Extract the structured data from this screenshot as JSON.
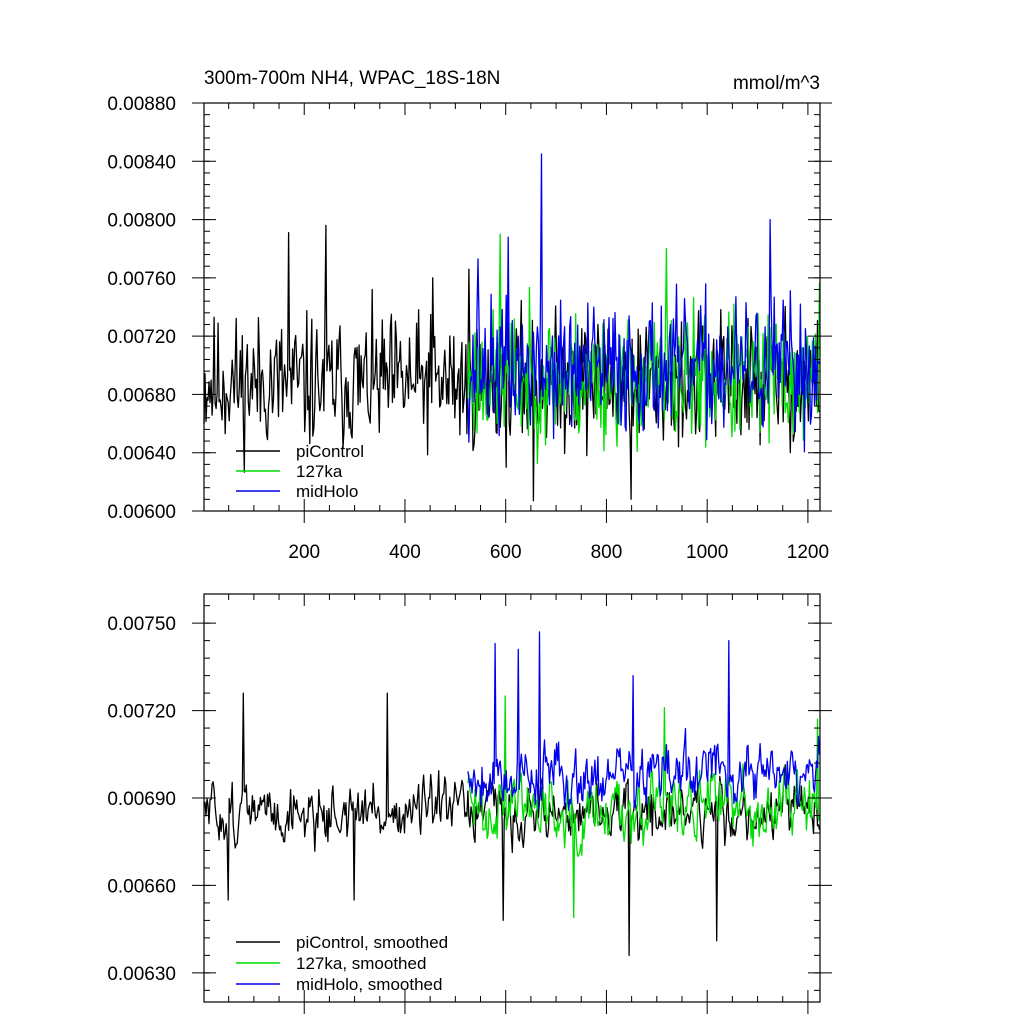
{
  "chart_data": [
    {
      "type": "line",
      "title": "300m-700m NH4, WPAC_18S-18N",
      "units": "mmol/m^3",
      "xlabel": "",
      "ylabel": "",
      "xlim": [
        1,
        1224
      ],
      "ylim": [
        0.006,
        0.0088
      ],
      "x_ticks": [
        200,
        400,
        600,
        800,
        1000,
        1200
      ],
      "x_tick_labels": [
        "200",
        "400",
        "600",
        "800",
        "1000",
        "1200"
      ],
      "y_ticks": [
        0.006,
        0.0064,
        0.0068,
        0.0072,
        0.0076,
        0.008,
        0.0084,
        0.0088
      ],
      "y_tick_labels": [
        "0.00600",
        "0.00640",
        "0.00680",
        "0.00720",
        "0.00760",
        "0.00800",
        "0.00840",
        "0.00880"
      ],
      "legend_position": "bottom-left",
      "series": [
        {
          "name": "piControl",
          "color": "#000000",
          "x_start": 1,
          "x_end": 1224,
          "mean": 0.00688,
          "spread": 0.00028,
          "seed": 11,
          "peaks": [
            [
              527,
              0.00766
            ],
            [
              170,
              0.00791
            ],
            [
              243,
              0.00796
            ],
            [
              455,
              0.0076
            ],
            [
              655,
              0.00607
            ],
            [
              850,
              0.00608
            ]
          ]
        },
        {
          "name": "127ka",
          "color": "#00dd00",
          "x_start": 525,
          "x_end": 1224,
          "mean": 0.00691,
          "spread": 0.00028,
          "seed": 23,
          "peaks": [
            [
              590,
              0.0079
            ],
            [
              920,
              0.0078
            ],
            [
              1224,
              0.00757
            ]
          ]
        },
        {
          "name": "midHolo",
          "color": "#0000ee",
          "x_start": 525,
          "x_end": 1224,
          "mean": 0.00698,
          "spread": 0.00028,
          "seed": 37,
          "peaks": [
            [
              672,
              0.00845
            ],
            [
              1125,
              0.008
            ],
            [
              605,
              0.00788
            ],
            [
              545,
              0.00773
            ]
          ]
        }
      ]
    },
    {
      "type": "line",
      "title": "",
      "xlabel": "",
      "ylabel": "",
      "xlim": [
        1,
        1224
      ],
      "ylim": [
        0.0062,
        0.0076
      ],
      "x_ticks": [
        200,
        400,
        600,
        800,
        1000,
        1200
      ],
      "y_ticks": [
        0.0063,
        0.0066,
        0.0069,
        0.0072,
        0.0075
      ],
      "y_tick_labels": [
        "0.00630",
        "0.00660",
        "0.00690",
        "0.00720",
        "0.00750"
      ],
      "legend_position": "bottom-left",
      "series": [
        {
          "name": "piControl, smoothed",
          "color": "#000000",
          "x_start": 1,
          "x_end": 1224,
          "mean": 0.00685,
          "spread": 0.00012,
          "seed": 51,
          "peaks": [
            [
              80,
              0.00726
            ],
            [
              365,
              0.00726
            ],
            [
              50,
              0.00655
            ],
            [
              300,
              0.00655
            ],
            [
              845,
              0.00636
            ],
            [
              1020,
              0.00641
            ],
            [
              595,
              0.00648
            ]
          ]
        },
        {
          "name": "127ka, smoothed",
          "color": "#00dd00",
          "x_start": 525,
          "x_end": 1224,
          "mean": 0.00688,
          "spread": 0.00014,
          "seed": 63,
          "peaks": [
            [
              600,
              0.00725
            ],
            [
              915,
              0.00721
            ],
            [
              1220,
              0.00717
            ],
            [
              735,
              0.00649
            ]
          ]
        },
        {
          "name": "midHolo, smoothed",
          "color": "#0000ee",
          "x_start": 525,
          "x_end": 1224,
          "mean": 0.00698,
          "spread": 0.00013,
          "seed": 79,
          "peaks": [
            [
              668,
              0.00747
            ],
            [
              1043,
              0.00744
            ],
            [
              580,
              0.00743
            ],
            [
              625,
              0.00741
            ],
            [
              853,
              0.00732
            ]
          ]
        }
      ]
    }
  ]
}
